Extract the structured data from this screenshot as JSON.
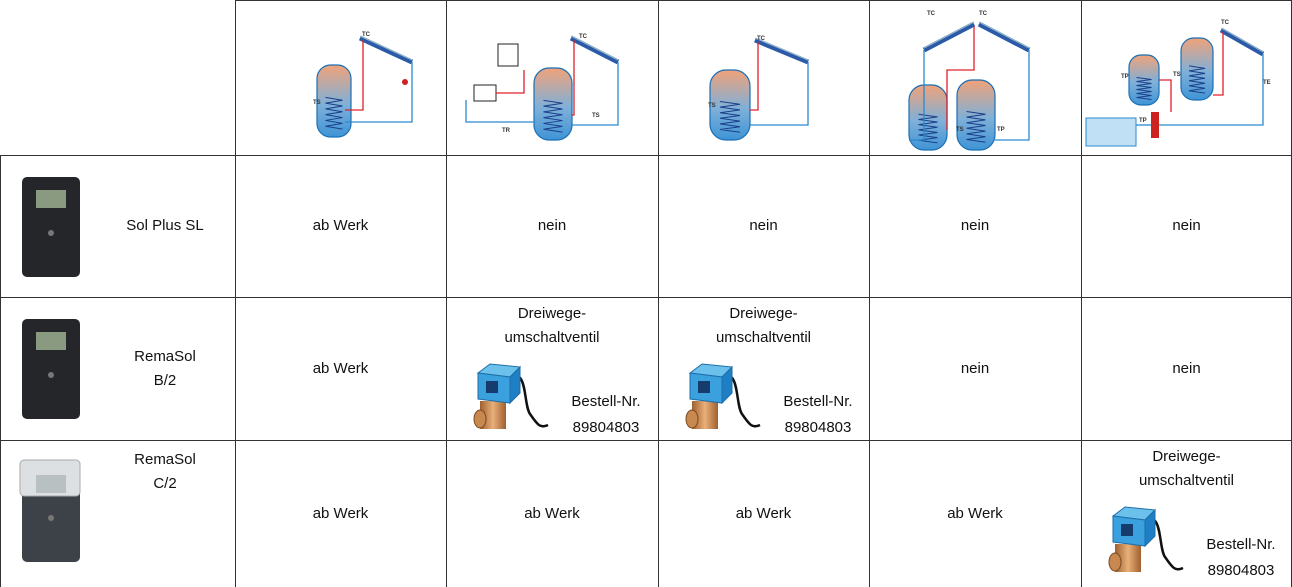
{
  "header": {
    "diagrams": [
      {
        "labels": [
          "TC",
          "TS"
        ]
      },
      {
        "labels": [
          "TC",
          "TS",
          "TR"
        ]
      },
      {
        "labels": [
          "TC",
          "TS"
        ]
      },
      {
        "labels": [
          "TC",
          "TC",
          "TS",
          "TP"
        ]
      },
      {
        "labels": [
          "TC",
          "TP",
          "TS",
          "TE",
          "TP"
        ]
      }
    ]
  },
  "rows": [
    {
      "product": "Sol Plus SL",
      "cells": [
        "ab Werk",
        "nein",
        "nein",
        "nein",
        "nein"
      ]
    },
    {
      "product": "RemaSol B/2",
      "cells": [
        "ab Werk",
        {
          "title": "Dreiwege-umschaltventil",
          "order_label": "Bestell-Nr.",
          "order_number": "89804803"
        },
        {
          "title": "Dreiwege-umschaltventil",
          "order_label": "Bestell-Nr.",
          "order_number": "89804803"
        },
        "nein",
        "nein"
      ]
    },
    {
      "product": "RemaSol C/2",
      "cells": [
        "ab Werk",
        "ab Werk",
        "ab Werk",
        "ab Werk",
        {
          "title": "Dreiwege-umschaltventil",
          "order_label": "Bestell-Nr.",
          "order_number": "89804803"
        }
      ]
    }
  ]
}
